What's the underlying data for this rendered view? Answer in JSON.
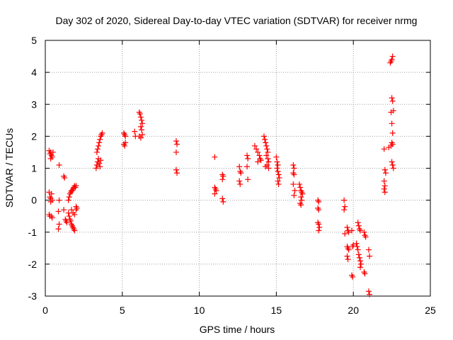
{
  "chart_data": {
    "type": "scatter",
    "title": "Day 302 of 2020, Sidereal Day-to-day VTEC variation (SDTVAR) for receiver nrmg",
    "xlabel": "GPS time / hours",
    "ylabel": "SDTVAR / TECUs",
    "xlim": [
      0,
      25
    ],
    "ylim": [
      -3,
      5
    ],
    "xticks": [
      0,
      5,
      10,
      15,
      20,
      25
    ],
    "yticks": [
      -3,
      -2,
      -1,
      0,
      1,
      2,
      3,
      4,
      5
    ],
    "grid": true,
    "marker": "+",
    "color": "#ff0000",
    "series": [
      {
        "name": "SDTVAR",
        "points": [
          [
            0.25,
            1.55
          ],
          [
            0.3,
            1.45
          ],
          [
            0.35,
            1.5
          ],
          [
            0.4,
            1.4
          ],
          [
            0.45,
            1.35
          ],
          [
            0.5,
            1.5
          ],
          [
            0.35,
            1.3
          ],
          [
            0.25,
            0.25
          ],
          [
            0.3,
            0.1
          ],
          [
            0.35,
            0.05
          ],
          [
            0.4,
            0.2
          ],
          [
            0.45,
            0.0
          ],
          [
            0.35,
            -0.05
          ],
          [
            0.25,
            -0.45
          ],
          [
            0.3,
            -0.5
          ],
          [
            0.4,
            -0.5
          ],
          [
            0.45,
            -0.55
          ],
          [
            0.9,
            1.1
          ],
          [
            0.9,
            0.0
          ],
          [
            0.85,
            -0.35
          ],
          [
            0.9,
            -0.75
          ],
          [
            0.85,
            -0.9
          ],
          [
            1.2,
            0.75
          ],
          [
            1.25,
            0.7
          ],
          [
            1.2,
            -0.3
          ],
          [
            1.3,
            -0.6
          ],
          [
            1.35,
            -0.65
          ],
          [
            1.4,
            -0.7
          ],
          [
            1.5,
            0.0
          ],
          [
            1.55,
            0.1
          ],
          [
            1.6,
            0.2
          ],
          [
            1.65,
            0.25
          ],
          [
            1.7,
            0.3
          ],
          [
            1.75,
            0.3
          ],
          [
            1.8,
            0.35
          ],
          [
            1.85,
            0.4
          ],
          [
            1.9,
            0.45
          ],
          [
            1.95,
            0.4
          ],
          [
            2.0,
            0.45
          ],
          [
            1.5,
            -0.4
          ],
          [
            1.55,
            -0.5
          ],
          [
            1.6,
            -0.6
          ],
          [
            1.65,
            -0.65
          ],
          [
            1.7,
            -0.75
          ],
          [
            1.75,
            -0.8
          ],
          [
            1.8,
            -0.85
          ],
          [
            1.85,
            -0.9
          ],
          [
            1.9,
            -0.95
          ],
          [
            1.7,
            -0.3
          ],
          [
            1.8,
            -0.4
          ],
          [
            1.9,
            -0.45
          ],
          [
            2.0,
            -0.3
          ],
          [
            2.05,
            -0.25
          ],
          [
            2.0,
            -0.2
          ],
          [
            3.3,
            1.0
          ],
          [
            3.35,
            1.1
          ],
          [
            3.4,
            1.2
          ],
          [
            3.45,
            1.3
          ],
          [
            3.5,
            1.15
          ],
          [
            3.55,
            1.05
          ],
          [
            3.6,
            1.25
          ],
          [
            3.35,
            1.5
          ],
          [
            3.4,
            1.6
          ],
          [
            3.45,
            1.7
          ],
          [
            3.5,
            1.8
          ],
          [
            3.55,
            1.9
          ],
          [
            3.6,
            2.0
          ],
          [
            3.65,
            2.05
          ],
          [
            3.7,
            2.1
          ],
          [
            5.1,
            2.1
          ],
          [
            5.15,
            2.05
          ],
          [
            5.2,
            2.0
          ],
          [
            5.1,
            1.75
          ],
          [
            5.15,
            1.7
          ],
          [
            5.2,
            1.8
          ],
          [
            5.8,
            2.15
          ],
          [
            5.85,
            2.0
          ],
          [
            6.1,
            2.75
          ],
          [
            6.15,
            2.7
          ],
          [
            6.2,
            2.6
          ],
          [
            6.25,
            2.5
          ],
          [
            6.3,
            2.4
          ],
          [
            6.2,
            2.3
          ],
          [
            6.25,
            2.2
          ],
          [
            6.1,
            2.0
          ],
          [
            6.2,
            1.95
          ],
          [
            6.3,
            2.05
          ],
          [
            8.5,
            1.85
          ],
          [
            8.55,
            1.75
          ],
          [
            8.5,
            1.5
          ],
          [
            8.5,
            0.95
          ],
          [
            8.55,
            0.85
          ],
          [
            11.0,
            1.35
          ],
          [
            11.0,
            0.4
          ],
          [
            11.05,
            0.35
          ],
          [
            11.1,
            0.3
          ],
          [
            11.0,
            0.2
          ],
          [
            11.5,
            0.8
          ],
          [
            11.55,
            0.75
          ],
          [
            11.5,
            0.65
          ],
          [
            11.5,
            0.05
          ],
          [
            11.55,
            -0.05
          ],
          [
            12.6,
            1.05
          ],
          [
            12.65,
            0.9
          ],
          [
            12.7,
            0.85
          ],
          [
            12.6,
            0.6
          ],
          [
            12.65,
            0.5
          ],
          [
            13.1,
            1.4
          ],
          [
            13.15,
            1.3
          ],
          [
            13.1,
            1.05
          ],
          [
            13.15,
            0.65
          ],
          [
            13.6,
            1.7
          ],
          [
            13.7,
            1.6
          ],
          [
            13.8,
            1.5
          ],
          [
            13.9,
            1.4
          ],
          [
            13.95,
            1.3
          ],
          [
            14.0,
            1.25
          ],
          [
            13.8,
            1.2
          ],
          [
            14.2,
            2.0
          ],
          [
            14.25,
            1.9
          ],
          [
            14.3,
            1.8
          ],
          [
            14.35,
            1.7
          ],
          [
            14.4,
            1.6
          ],
          [
            14.45,
            1.5
          ],
          [
            14.35,
            1.4
          ],
          [
            14.45,
            1.3
          ],
          [
            14.5,
            1.2
          ],
          [
            14.4,
            1.1
          ],
          [
            14.3,
            1.05
          ],
          [
            14.5,
            1.0
          ],
          [
            15.0,
            1.35
          ],
          [
            15.05,
            1.2
          ],
          [
            15.1,
            1.1
          ],
          [
            15.05,
            1.0
          ],
          [
            15.1,
            0.9
          ],
          [
            15.15,
            0.8
          ],
          [
            15.2,
            0.7
          ],
          [
            15.1,
            0.6
          ],
          [
            15.15,
            0.5
          ],
          [
            16.1,
            1.1
          ],
          [
            16.15,
            1.0
          ],
          [
            16.1,
            0.85
          ],
          [
            16.15,
            0.8
          ],
          [
            16.1,
            0.5
          ],
          [
            16.2,
            0.3
          ],
          [
            16.15,
            0.15
          ],
          [
            16.5,
            0.5
          ],
          [
            16.55,
            0.4
          ],
          [
            16.6,
            0.3
          ],
          [
            16.65,
            0.25
          ],
          [
            16.7,
            0.2
          ],
          [
            16.6,
            0.1
          ],
          [
            16.65,
            0.0
          ],
          [
            16.55,
            -0.1
          ],
          [
            16.6,
            -0.15
          ],
          [
            17.7,
            0.0
          ],
          [
            17.75,
            -0.05
          ],
          [
            17.7,
            -0.25
          ],
          [
            17.75,
            -0.3
          ],
          [
            17.7,
            -0.7
          ],
          [
            17.75,
            -0.75
          ],
          [
            17.8,
            -0.85
          ],
          [
            17.75,
            -0.95
          ],
          [
            19.4,
            0.0
          ],
          [
            19.45,
            -0.2
          ],
          [
            19.4,
            -0.3
          ],
          [
            19.45,
            -1.05
          ],
          [
            19.6,
            -0.85
          ],
          [
            19.65,
            -0.95
          ],
          [
            19.7,
            -1.0
          ],
          [
            19.6,
            -1.45
          ],
          [
            19.65,
            -1.5
          ],
          [
            19.7,
            -1.55
          ],
          [
            19.6,
            -1.75
          ],
          [
            19.65,
            -1.85
          ],
          [
            19.9,
            -0.95
          ],
          [
            19.95,
            -1.45
          ],
          [
            20.0,
            -1.4
          ],
          [
            19.9,
            -2.35
          ],
          [
            19.95,
            -2.4
          ],
          [
            20.2,
            -1.35
          ],
          [
            20.25,
            -1.45
          ],
          [
            20.3,
            -1.55
          ],
          [
            20.35,
            -1.7
          ],
          [
            20.4,
            -1.8
          ],
          [
            20.45,
            -1.9
          ],
          [
            20.5,
            -2.0
          ],
          [
            20.45,
            -2.1
          ],
          [
            20.3,
            -0.7
          ],
          [
            20.35,
            -0.8
          ],
          [
            20.4,
            -0.9
          ],
          [
            20.45,
            -0.95
          ],
          [
            20.7,
            -1.0
          ],
          [
            20.75,
            -1.1
          ],
          [
            20.8,
            -1.15
          ],
          [
            20.7,
            -2.25
          ],
          [
            20.75,
            -2.3
          ],
          [
            21.0,
            -1.55
          ],
          [
            21.05,
            -1.75
          ],
          [
            21.0,
            -2.85
          ],
          [
            21.05,
            -2.95
          ],
          [
            22.0,
            1.6
          ],
          [
            22.05,
            0.95
          ],
          [
            22.1,
            0.85
          ],
          [
            22.0,
            0.6
          ],
          [
            22.05,
            0.45
          ],
          [
            22.0,
            0.35
          ],
          [
            22.05,
            0.25
          ],
          [
            22.4,
            4.3
          ],
          [
            22.45,
            4.35
          ],
          [
            22.5,
            4.4
          ],
          [
            22.55,
            4.5
          ],
          [
            22.5,
            3.2
          ],
          [
            22.55,
            3.1
          ],
          [
            22.6,
            2.8
          ],
          [
            22.45,
            2.75
          ],
          [
            22.5,
            2.4
          ],
          [
            22.55,
            2.1
          ],
          [
            22.5,
            1.8
          ],
          [
            22.55,
            1.75
          ],
          [
            22.45,
            1.7
          ],
          [
            22.5,
            1.2
          ],
          [
            22.55,
            1.1
          ],
          [
            22.6,
            1.0
          ],
          [
            22.3,
            1.65
          ]
        ]
      }
    ]
  }
}
